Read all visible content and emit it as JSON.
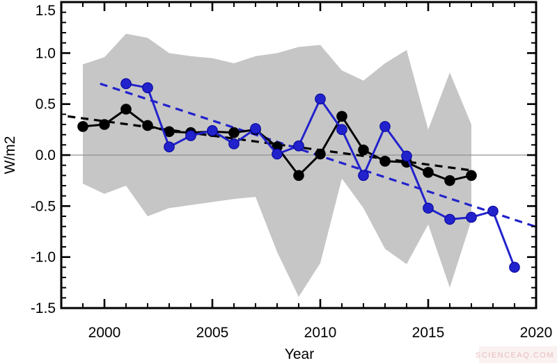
{
  "figure": {
    "watermark": "SCIENCEAQ.COM",
    "background": "#ffffff"
  },
  "chart_data": {
    "type": "line",
    "title": "",
    "xlabel": "Year",
    "ylabel": "W/m2",
    "xlim": [
      1998,
      2020
    ],
    "ylim": [
      -1.5,
      1.5
    ],
    "grid": false,
    "legend": "none",
    "zero_line": true,
    "x_major_ticks": [
      2000,
      2005,
      2010,
      2015,
      2020
    ],
    "x_tick_labels": [
      "2000",
      "2005",
      "2010",
      "2015",
      "2020"
    ],
    "x_minor_step": 1,
    "y_major_ticks": [
      -1.5,
      -1.0,
      -0.5,
      0.0,
      0.5,
      1.0,
      1.5
    ],
    "y_tick_labels": [
      "-1.5",
      "-1.0",
      "-0.5",
      "0.0",
      "0.5",
      "1.0",
      "1.5"
    ],
    "y_minor_step": 0.1,
    "colors": {
      "black_series": "#000000",
      "blue_series": "#2222cc",
      "band": "#c6c6c6",
      "zero_line": "#909090"
    },
    "band": {
      "name": "gray-uncertainty-band",
      "color": "#c6c6c6",
      "x": [
        1999,
        2000,
        2001,
        2002,
        2003,
        2004,
        2005,
        2006,
        2007,
        2008,
        2009,
        2010,
        2011,
        2012,
        2013,
        2014,
        2015,
        2016,
        2017
      ],
      "upper": [
        0.89,
        0.96,
        1.19,
        1.15,
        1.0,
        0.97,
        0.95,
        0.9,
        0.97,
        1.0,
        1.06,
        1.08,
        0.83,
        0.73,
        0.9,
        1.03,
        0.25,
        0.81,
        0.3
      ],
      "lower": [
        -0.28,
        -0.38,
        -0.3,
        -0.6,
        -0.52,
        -0.49,
        -0.46,
        -0.43,
        -0.41,
        -0.95,
        -1.39,
        -1.06,
        -0.23,
        -0.52,
        -0.92,
        -1.07,
        -0.68,
        -1.3,
        -0.64
      ]
    },
    "series": [
      {
        "name": "black-circles-series",
        "color": "#000000",
        "marker": "circle",
        "x": [
          1999,
          2000,
          2001,
          2002,
          2003,
          2004,
          2005,
          2006,
          2007,
          2008,
          2009,
          2010,
          2011,
          2012,
          2013,
          2014,
          2015,
          2016,
          2017
        ],
        "values": [
          0.28,
          0.3,
          0.45,
          0.29,
          0.23,
          0.22,
          0.23,
          0.22,
          0.25,
          0.08,
          -0.2,
          0.01,
          0.38,
          0.05,
          -0.06,
          -0.07,
          -0.17,
          -0.25,
          -0.2
        ]
      },
      {
        "name": "blue-circles-series",
        "color": "#2222cc",
        "marker": "circle",
        "x": [
          2001,
          2002,
          2003,
          2004,
          2005,
          2006,
          2007,
          2008,
          2009,
          2010,
          2011,
          2012,
          2013,
          2014,
          2015,
          2016,
          2017,
          2018,
          2019
        ],
        "values": [
          0.7,
          0.66,
          0.08,
          0.19,
          0.24,
          0.11,
          0.26,
          0.01,
          0.09,
          0.55,
          0.25,
          -0.2,
          0.28,
          -0.01,
          -0.52,
          -0.63,
          -0.61,
          -0.55,
          -1.1
        ]
      }
    ],
    "trend_lines": [
      {
        "name": "black-dashed-trend",
        "color": "#000000",
        "style": "dashed",
        "x": [
          1998.3,
          2017.0
        ],
        "values": [
          0.38,
          -0.15
        ]
      },
      {
        "name": "blue-dashed-trend",
        "color": "#2222cc",
        "style": "dashed",
        "x": [
          1999.8,
          2019.95
        ],
        "values": [
          0.7,
          -0.7
        ]
      }
    ]
  }
}
